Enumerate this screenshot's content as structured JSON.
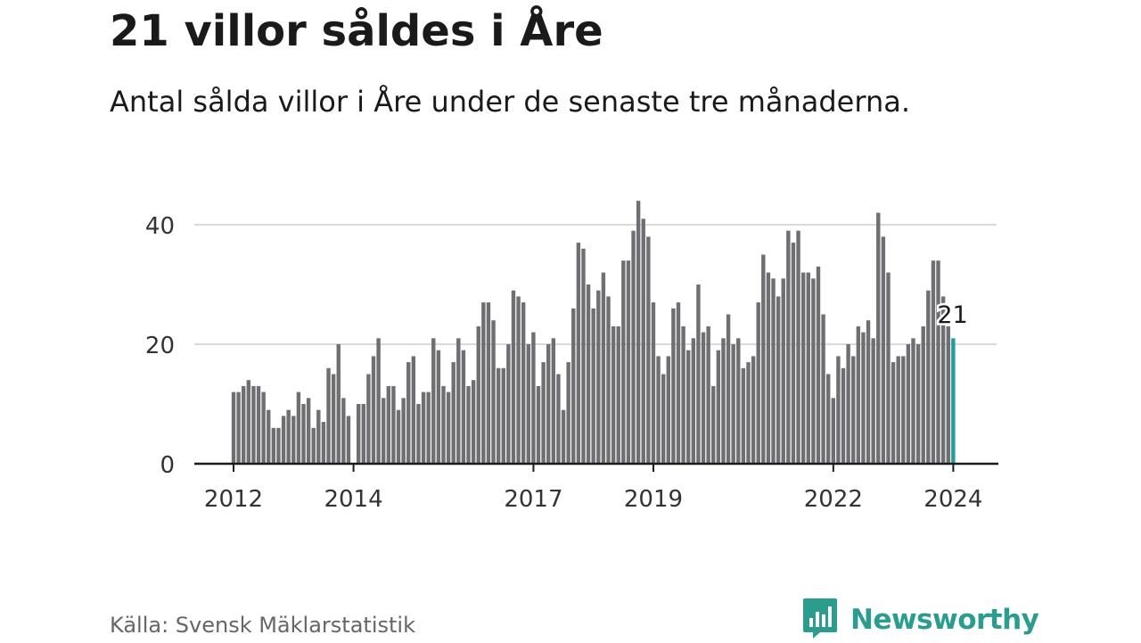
{
  "header": {
    "title": "21 villor såldes i Åre",
    "subtitle": "Antal sålda villor i Åre under de senaste tre månaderna."
  },
  "footer": {
    "source": "Källa: Svensk Mäklarstatistik",
    "brand": "Newsworthy"
  },
  "colors": {
    "bar": "#6e6e73",
    "highlight": "#1f9e9a",
    "grid": "#d9d9d9",
    "axis": "#1a1a1a",
    "text": "#1a1a1a",
    "muted": "#666666",
    "brand": "#2a9d8f"
  },
  "icons": {
    "logo": "newsworthy-logo-icon"
  },
  "chart_data": {
    "type": "bar",
    "title": "21 villor såldes i Åre",
    "subtitle": "Antal sålda villor i Åre under de senaste tre månaderna.",
    "xlabel": "",
    "ylabel": "",
    "x_range": [
      2012.0,
      2024.0833
    ],
    "ylim": [
      0,
      45
    ],
    "yticks": [
      0,
      20,
      40
    ],
    "grid": true,
    "legend": "none",
    "xtick_labels": [
      {
        "label": "2012",
        "x": 2012.0
      },
      {
        "label": "2014",
        "x": 2014.0
      },
      {
        "label": "2017",
        "x": 2017.0
      },
      {
        "label": "2019",
        "x": 2019.0
      },
      {
        "label": "2022",
        "x": 2022.0
      },
      {
        "label": "2024",
        "x": 2024.0
      }
    ],
    "start_x": 2012.0,
    "step": 0.08333,
    "values": [
      12,
      12,
      13,
      14,
      13,
      13,
      12,
      9,
      6,
      6,
      8,
      9,
      8,
      12,
      10,
      11,
      6,
      9,
      7,
      16,
      15,
      20,
      11,
      8,
      null,
      10,
      10,
      15,
      18,
      21,
      11,
      13,
      13,
      9,
      11,
      17,
      18,
      10,
      12,
      12,
      21,
      19,
      13,
      12,
      17,
      21,
      19,
      13,
      14,
      23,
      27,
      27,
      24,
      16,
      16,
      20,
      29,
      28,
      27,
      20,
      22,
      13,
      17,
      20,
      21,
      15,
      9,
      17,
      26,
      37,
      36,
      30,
      26,
      29,
      32,
      28,
      23,
      23,
      34,
      34,
      39,
      44,
      41,
      38,
      27,
      18,
      15,
      18,
      26,
      27,
      23,
      19,
      21,
      30,
      22,
      23,
      13,
      19,
      21,
      25,
      20,
      21,
      16,
      17,
      18,
      27,
      35,
      32,
      31,
      28,
      31,
      39,
      37,
      39,
      32,
      32,
      31,
      33,
      25,
      15,
      11,
      18,
      16,
      20,
      18,
      23,
      22,
      24,
      21,
      42,
      38,
      32,
      17,
      18,
      18,
      20,
      21,
      20,
      23,
      29,
      34,
      34,
      28,
      23,
      21
    ],
    "highlight_last": true,
    "annotation": {
      "label": "21",
      "value": 21
    }
  }
}
